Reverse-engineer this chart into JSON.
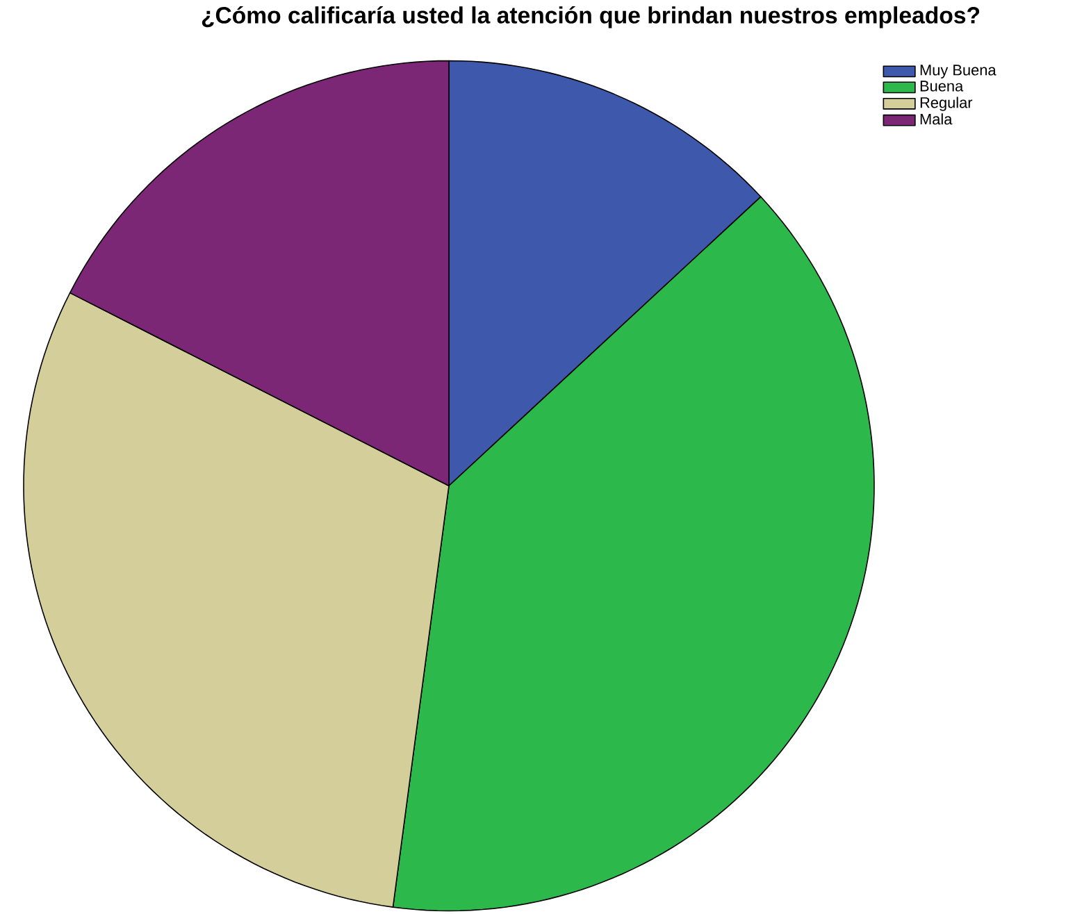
{
  "chart_data": {
    "type": "pie",
    "title": "¿Cómo calificaría usted la atención que brindan nuestros empleados?",
    "categories": [
      "Muy Buena",
      "Buena",
      "Regular",
      "Mala"
    ],
    "values": [
      13.1,
      39.0,
      30.4,
      17.5
    ],
    "colors": [
      "#3e58ac",
      "#2db84c",
      "#d4cf9a",
      "#7b2776"
    ],
    "legend": "top right"
  }
}
